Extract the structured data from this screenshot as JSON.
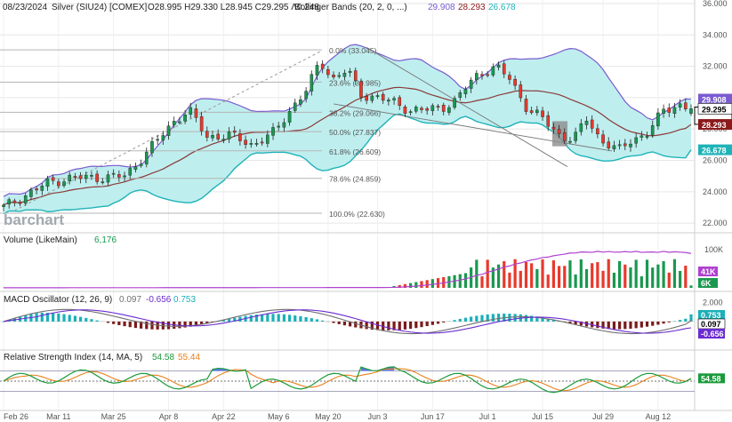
{
  "header": {
    "date": "08/23/2024",
    "symbol": "Silver (SIU24) [COMEX]",
    "ohlc": "O28.995 H29.330 L28.945 C29.295 Λ0.248",
    "bb_label": "Bollinger Bands  (20, 2, 0, ...)",
    "bb_upper": "29.908",
    "bb_mid": "28.293",
    "bb_lower": "26.678"
  },
  "logo": "barchart",
  "colors": {
    "up": "#1a9850",
    "down": "#e8392c",
    "band_fill": "#bfeeee",
    "band_upper": "#7a5bd0",
    "band_lower": "#1fb3b8",
    "mid": "#8b3a3a",
    "vol_ma": "#b040d0",
    "macd_pos": "#1ab0b8",
    "macd_neg": "#7a1a1a",
    "macd_line": "#707070",
    "macd_signal": "#6a2bd0",
    "rsi": "#1a9a3a",
    "rsi_ma": "#e8801a",
    "rsi_ob_fill": "#5a78e8"
  },
  "x_dates": [
    "Feb 26",
    "Mar 11",
    "Mar 25",
    "Apr 8",
    "Apr 22",
    "May 6",
    "May 20",
    "Jun 3",
    "Jun 17",
    "Jul 1",
    "Jul 15",
    "Jul 29",
    "Aug 12"
  ],
  "price_axis": [
    "36.000",
    "34.000",
    "32.000",
    "30.000",
    "28.000",
    "26.000",
    "24.000",
    "22.000"
  ],
  "fib": [
    {
      "label": "0.0% (33.045)",
      "value": 33.045
    },
    {
      "label": "23.6% (30.985)",
      "value": 30.985
    },
    {
      "label": "38.2% (29.066)",
      "value": 29.066
    },
    {
      "label": "50.0% (27.837)",
      "value": 27.837
    },
    {
      "label": "61.8% (26.609)",
      "value": 26.609
    },
    {
      "label": "78.6% (24.859)",
      "value": 24.859
    },
    {
      "label": "100.0% (22.630)",
      "value": 22.63
    }
  ],
  "price_tags": [
    {
      "text": "29.908",
      "bg": "#7a5bd0",
      "fg": "#ffffff",
      "value": 29.908
    },
    {
      "text": "29.295",
      "bg": "#ffffff",
      "fg": "#000000",
      "value": 29.295
    },
    {
      "text": "28.293",
      "bg": "#8b1a1a",
      "fg": "#ffffff",
      "value": 28.293
    },
    {
      "text": "26.678",
      "bg": "#1fb3b8",
      "fg": "#ffffff",
      "value": 26.678
    }
  ],
  "volume": {
    "label": "Volume (LikeMain)",
    "value": "6,176",
    "axis": "100K",
    "tag_ma": "41K",
    "tag_vol": "6K"
  },
  "macd": {
    "label": "MACD Oscillator (12, 26, 9)",
    "v1": "0.097",
    "v2": "-0.656",
    "v3": "0.753",
    "axis_top": "2.000",
    "tags": [
      "0.753",
      "0.097",
      "-0.656"
    ]
  },
  "rsi": {
    "label": "Relative Strength Index (14, MA, 5)",
    "v1": "54.58",
    "v2": "55.44",
    "tag": "54.58"
  },
  "chart_data": {
    "type": "candlestick",
    "title": "Silver (SIU24) [COMEX]",
    "x": [
      "Feb 26",
      "Mar 11",
      "Mar 25",
      "Apr 8",
      "Apr 22",
      "May 6",
      "May 20",
      "Jun 3",
      "Jun 17",
      "Jul 1",
      "Jul 15",
      "Jul 29",
      "Aug 12",
      "Aug 23"
    ],
    "close_approx": [
      23.0,
      24.9,
      25.0,
      27.8,
      27.5,
      27.0,
      31.8,
      30.2,
      29.3,
      29.8,
      30.8,
      28.0,
      27.2,
      29.295
    ],
    "ylim": [
      21.5,
      36.0
    ],
    "bollinger": {
      "upper_last": 29.908,
      "mid_last": 28.293,
      "lower_last": 26.678
    },
    "macd_last": {
      "macd": 0.097,
      "signal": -0.656,
      "hist": 0.753
    },
    "rsi_last": {
      "rsi": 54.58,
      "ma": 55.44
    }
  }
}
